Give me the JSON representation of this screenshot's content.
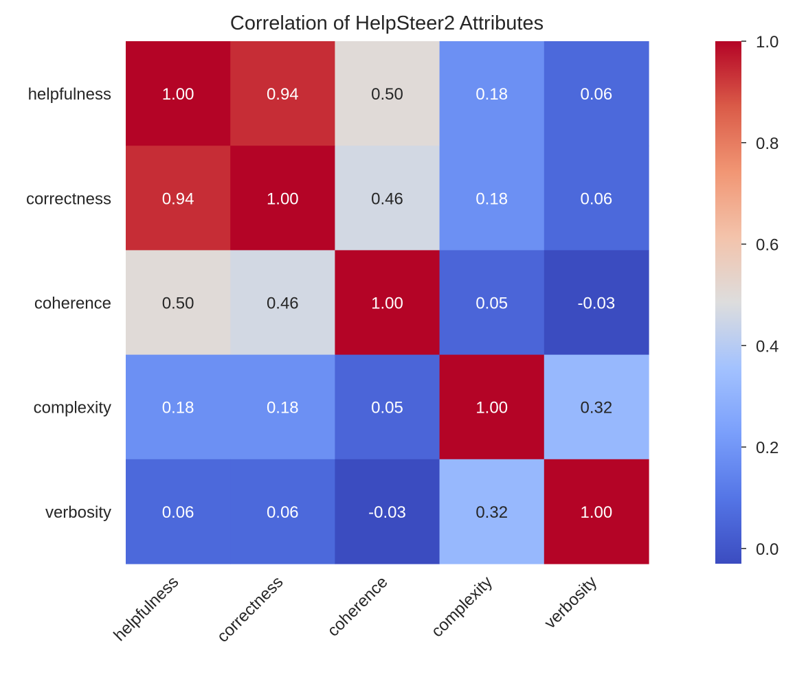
{
  "chart_data": {
    "type": "heatmap",
    "title": "Correlation of HelpSteer2 Attributes",
    "xlabel": "",
    "ylabel": "",
    "x_categories": [
      "helpfulness",
      "correctness",
      "coherence",
      "complexity",
      "verbosity"
    ],
    "y_categories": [
      "helpfulness",
      "correctness",
      "coherence",
      "complexity",
      "verbosity"
    ],
    "values": [
      [
        1.0,
        0.94,
        0.5,
        0.18,
        0.06
      ],
      [
        0.94,
        1.0,
        0.46,
        0.18,
        0.06
      ],
      [
        0.5,
        0.46,
        1.0,
        0.05,
        -0.03
      ],
      [
        0.18,
        0.18,
        0.05,
        1.0,
        0.32
      ],
      [
        0.06,
        0.06,
        -0.03,
        0.32,
        1.0
      ]
    ],
    "value_labels": [
      [
        "1.00",
        "0.94",
        "0.50",
        "0.18",
        "0.06"
      ],
      [
        "0.94",
        "1.00",
        "0.46",
        "0.18",
        "0.06"
      ],
      [
        "0.50",
        "0.46",
        "1.00",
        "0.05",
        "-0.03"
      ],
      [
        "0.18",
        "0.18",
        "0.05",
        "1.00",
        "0.32"
      ],
      [
        "0.06",
        "0.06",
        "-0.03",
        "0.32",
        "1.00"
      ]
    ],
    "colormap": "coolwarm",
    "colorbar": {
      "range": [
        -0.03,
        1.0
      ],
      "tick_values": [
        0.0,
        0.2,
        0.4,
        0.6,
        0.8,
        1.0
      ],
      "tick_labels": [
        "0.0",
        "0.2",
        "0.4",
        "0.6",
        "0.8",
        "1.0"
      ]
    },
    "colors": {
      "dark_text": "#262626",
      "light_text": "#ffffff",
      "low": "#3b4cc0",
      "mid": "#dddddd",
      "high": "#b40426"
    }
  }
}
